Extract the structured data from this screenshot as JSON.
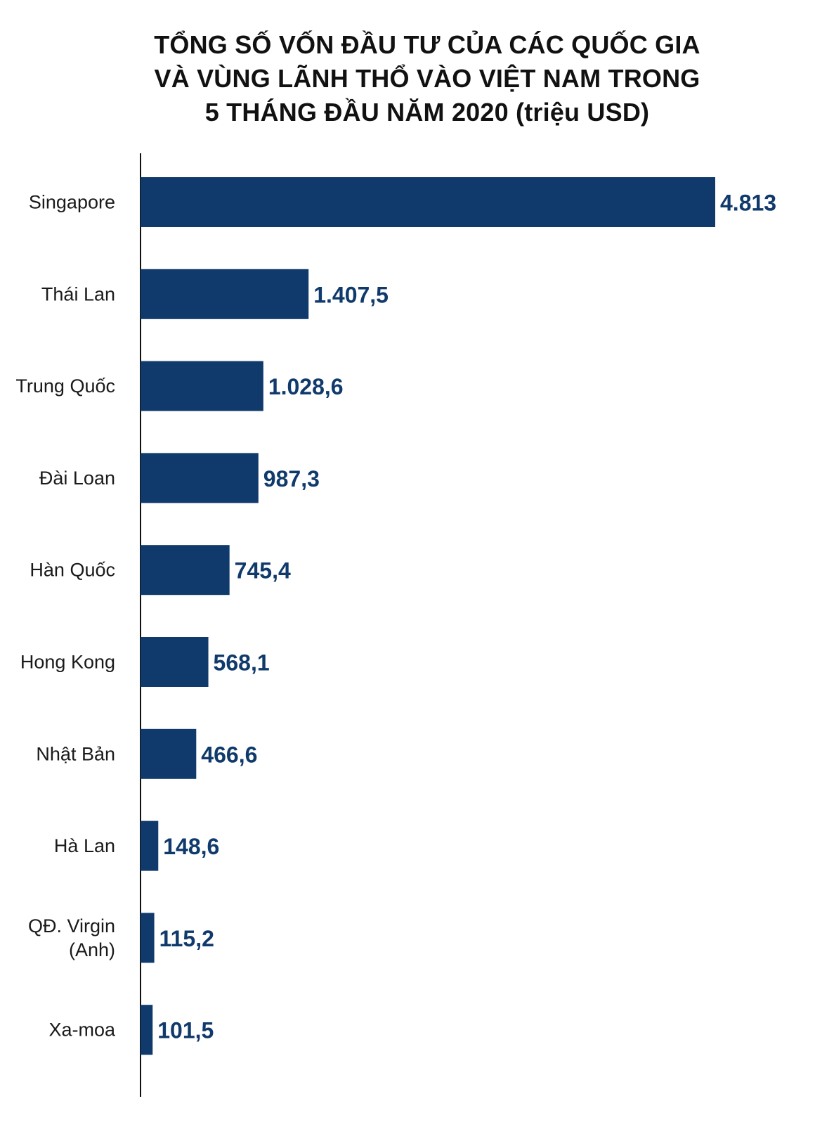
{
  "title_lines": [
    "TỔNG SỐ VỐN ĐẦU TƯ CỦA CÁC QUỐC GIA",
    "VÀ VÙNG LÃNH THỔ VÀO VIỆT NAM TRONG",
    "5 THÁNG ĐẦU NĂM 2020 (triệu USD)"
  ],
  "colors": {
    "bar": "#0f3a6b",
    "value_text": "#0f3a6b",
    "axis": "#111111"
  },
  "chart_data": {
    "type": "bar",
    "orientation": "horizontal",
    "title": "TỔNG SỐ VỐN ĐẦU TƯ CỦA CÁC QUỐC GIA VÀ VÙNG LÃNH THỔ VÀO VIỆT NAM TRONG 5 THÁNG ĐẦU NĂM 2020 (triệu USD)",
    "categories": [
      [
        "Singapore"
      ],
      [
        "Thái Lan"
      ],
      [
        "Trung Quốc"
      ],
      [
        "Đài Loan"
      ],
      [
        "Hàn Quốc"
      ],
      [
        "Hong Kong"
      ],
      [
        "Nhật Bản"
      ],
      [
        "Hà Lan"
      ],
      [
        "QĐ. Virgin",
        "(Anh)"
      ],
      [
        "Xa-moa"
      ]
    ],
    "values": [
      4813,
      1407.5,
      1028.6,
      987.3,
      745.4,
      568.1,
      466.6,
      148.6,
      115.2,
      101.5
    ],
    "value_labels": [
      "4.813",
      "1.407,5",
      "1.028,6",
      "987,3",
      "745,4",
      "568,1",
      "466,6",
      "148,6",
      "115,2",
      "101,5"
    ],
    "xlim": [
      0,
      4813
    ],
    "grid": false,
    "legend": "none"
  }
}
